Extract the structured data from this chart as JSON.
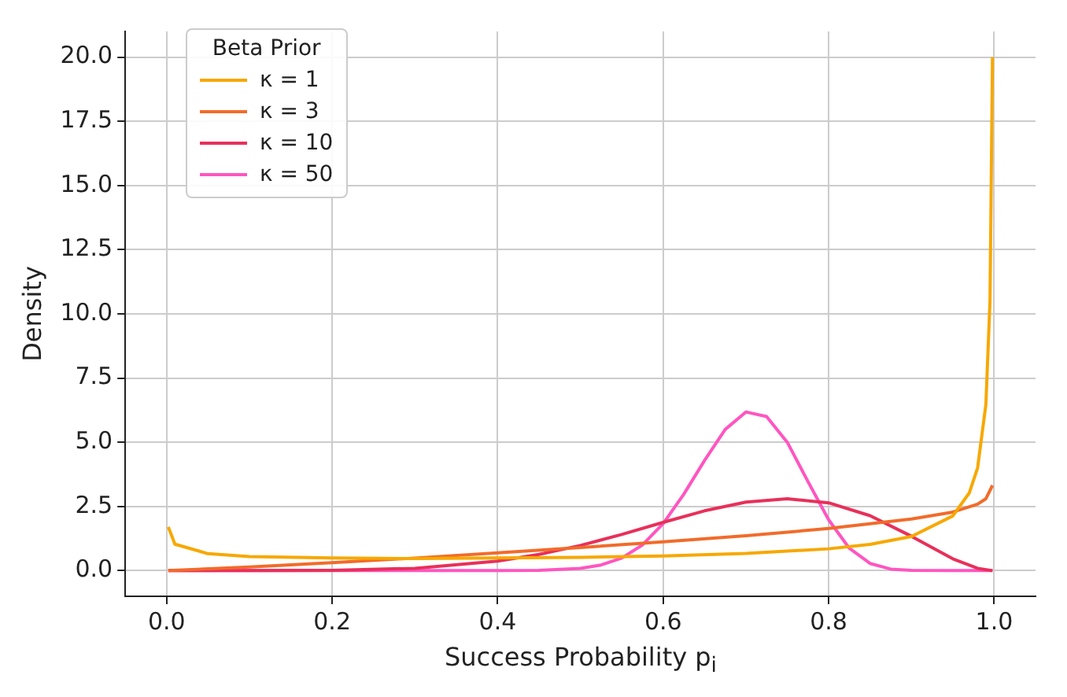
{
  "chart_data": {
    "type": "line",
    "xlabel": "Success Probability p$_{i}$",
    "ylabel": "Density",
    "legend_title": "Beta Prior",
    "legend": "top left",
    "grid": true,
    "marker": "none",
    "line_style": "solid",
    "xlim": [
      -0.05,
      1.05
    ],
    "xticks": [
      {
        "value": 0,
        "label": "0.0"
      },
      {
        "value": 0.2,
        "label": "0.2"
      },
      {
        "value": 0.4,
        "label": "0.4"
      },
      {
        "value": 0.6,
        "label": "0.6"
      },
      {
        "value": 0.8,
        "label": "0.8"
      },
      {
        "value": 1,
        "label": "1.0"
      }
    ],
    "ylim": [
      -1,
      21
    ],
    "yticks": [
      {
        "value": 0,
        "label": "0.0"
      },
      {
        "value": 2.5,
        "label": "2.5"
      },
      {
        "value": 5,
        "label": "5.0"
      },
      {
        "value": 7.5,
        "label": "7.5"
      },
      {
        "value": 10,
        "label": "10.0"
      },
      {
        "value": 12.5,
        "label": "12.5"
      },
      {
        "value": 15,
        "label": "15.0"
      },
      {
        "value": 17.5,
        "label": "17.5"
      },
      {
        "value": 20,
        "label": "20.0"
      }
    ],
    "series": [
      {
        "name": "κ = 1",
        "color": "#f7a800",
        "x": [
          0.002,
          0.01,
          0.05,
          0.1,
          0.2,
          0.3,
          0.4,
          0.5,
          0.6,
          0.7,
          0.8,
          0.85,
          0.9,
          0.95,
          0.97,
          0.98,
          0.99,
          0.995,
          0.998
        ],
        "values": [
          1.7,
          1.03,
          0.66,
          0.55,
          0.49,
          0.47,
          0.49,
          0.52,
          0.57,
          0.67,
          0.85,
          1.02,
          1.33,
          2.13,
          3.03,
          4.0,
          6.47,
          10.5,
          20.0
        ]
      },
      {
        "name": "κ = 3",
        "color": "#f26b2a",
        "x": [
          0.002,
          0.1,
          0.2,
          0.3,
          0.4,
          0.5,
          0.6,
          0.7,
          0.8,
          0.9,
          0.95,
          0.98,
          0.99,
          0.998
        ],
        "values": [
          0.0,
          0.14,
          0.31,
          0.49,
          0.69,
          0.9,
          1.12,
          1.36,
          1.64,
          2.01,
          2.28,
          2.59,
          2.8,
          3.32
        ]
      },
      {
        "name": "κ = 10",
        "color": "#e8305a",
        "x": [
          0.002,
          0.1,
          0.2,
          0.3,
          0.4,
          0.45,
          0.5,
          0.55,
          0.6,
          0.65,
          0.7,
          0.75,
          0.8,
          0.85,
          0.9,
          0.95,
          0.98,
          0.998
        ],
        "values": [
          0.0,
          0.0,
          0.01,
          0.09,
          0.37,
          0.63,
          0.98,
          1.41,
          1.88,
          2.33,
          2.67,
          2.8,
          2.64,
          2.14,
          1.34,
          0.46,
          0.09,
          0.0
        ]
      },
      {
        "name": "κ = 50",
        "color": "#ff55c0",
        "x": [
          0.002,
          0.4,
          0.45,
          0.5,
          0.525,
          0.55,
          0.575,
          0.6,
          0.625,
          0.65,
          0.675,
          0.7,
          0.725,
          0.75,
          0.775,
          0.8,
          0.825,
          0.85,
          0.875,
          0.9,
          0.95,
          0.998
        ],
        "values": [
          0.0,
          0.0,
          0.01,
          0.09,
          0.22,
          0.49,
          1.0,
          1.83,
          2.98,
          4.29,
          5.5,
          6.18,
          6.0,
          5.0,
          3.47,
          1.98,
          0.87,
          0.28,
          0.06,
          0.01,
          0.0,
          0.0
        ]
      }
    ]
  }
}
